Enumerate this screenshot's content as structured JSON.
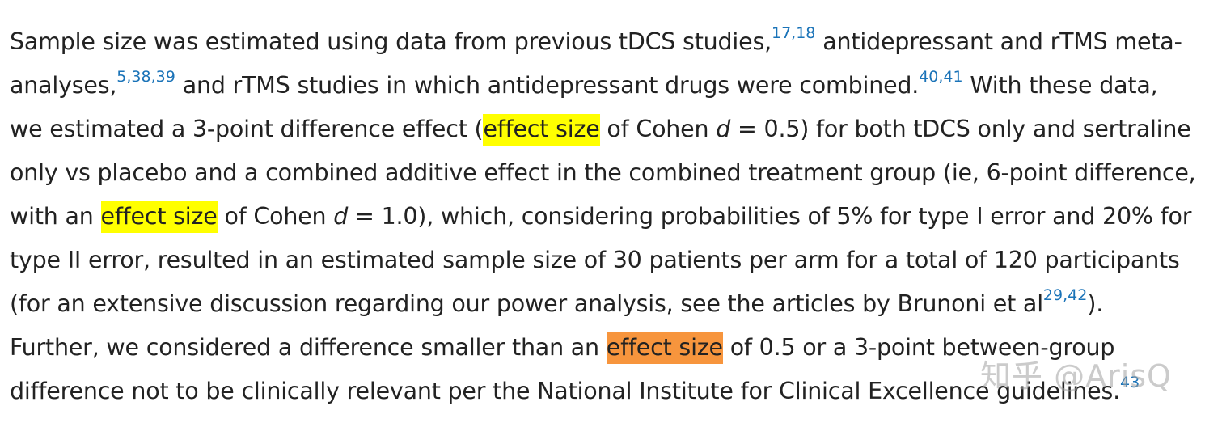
{
  "paragraph": {
    "l1": {
      "a": "Sample size was estimated using data from previous tDCS studies,",
      "r1": "17",
      "c": ",",
      "r2": "18",
      "b": " antidepressant and rTMS meta-"
    },
    "l2": {
      "a": "analyses,",
      "r1": "5",
      "c1": ",",
      "r2": "38",
      "c2": ",",
      "r3": "39",
      "b": " and rTMS studies in which antidepressant drugs were combined.",
      "r4": "40",
      "c3": ",",
      "r5": "41",
      "d": " With these data,"
    },
    "l3": {
      "a": "we estimated a 3-point difference effect (",
      "hl": "effect size",
      "b": " of Cohen ",
      "d": "d",
      "e": " = 0.5) for both tDCS only and sertraline"
    },
    "l4": {
      "a": "only vs placebo and a combined additive effect in the combined treatment group (ie, 6-point difference,"
    },
    "l5": {
      "a": "with an ",
      "hl": "effect size",
      "b": " of Cohen ",
      "d": "d",
      "e": " = 1.0), which, considering probabilities of 5% for type I error and 20% for"
    },
    "l6": {
      "a": "type II error, resulted in an estimated sample size of 30 patients per arm for a total of 120 participants"
    },
    "l7": {
      "a": "(for an extensive discussion regarding our power analysis, see the articles by Brunoni et al",
      "r1": "29",
      "c": ",",
      "r2": "42",
      "b": ")."
    },
    "l8": {
      "a": "Further, we considered a difference smaller than an ",
      "hl": "effect size",
      "b": " of 0.5 or a 3-point between-group"
    },
    "l9": {
      "a": "difference not to be clinically relevant per the National Institute for Clinical Excellence guidelines.",
      "r1": "43"
    }
  },
  "watermark": {
    "text": "知乎 @ArisQ"
  },
  "colors": {
    "text": "#222222",
    "link": "#1a73b8",
    "highlight_yellow": "#ffff00",
    "highlight_orange": "#f7953d"
  }
}
